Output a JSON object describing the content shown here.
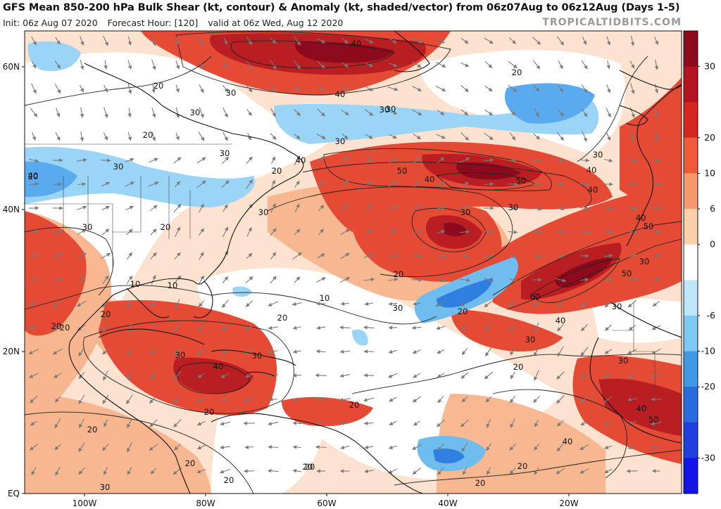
{
  "header": {
    "title": "GFS Mean 850-200 hPa Bulk Shear (kt, contour) & Anomaly (kt, shaded/vector) from 06z07Aug to 06z12Aug (Days 1-5)",
    "init": "Init: 06z Aug 07 2020",
    "forecast_hour": "Forecast Hour: [120]",
    "valid": "valid at 06z Wed, Aug 12 2020",
    "brand": "TROPICALTIDBITS.COM"
  },
  "map": {
    "lat_labels": [
      "60N",
      "40N",
      "20N",
      "EQ"
    ],
    "lon_labels": [
      "100W",
      "80W",
      "60W",
      "40W",
      "20W"
    ],
    "contour_labels": [
      "40",
      "40",
      "30",
      "20",
      "30",
      "20",
      "30",
      "30",
      "40",
      "20",
      "40",
      "30",
      "30",
      "20",
      "30",
      "50",
      "40",
      "50",
      "40",
      "30",
      "30",
      "40",
      "40",
      "30",
      "50",
      "30",
      "20",
      "30",
      "60",
      "50",
      "20",
      "10",
      "10",
      "10",
      "20",
      "20",
      "20",
      "40",
      "40",
      "30",
      "30",
      "20",
      "20",
      "30",
      "20",
      "20",
      "30",
      "40",
      "50",
      "40",
      "20",
      "20",
      "20",
      "20",
      "30",
      "20",
      "30",
      "20",
      "30",
      "30",
      "20",
      "20",
      "20"
    ],
    "region_notes": []
  },
  "colorbar": {
    "ticks": [
      "30",
      "20",
      "10",
      "6",
      "0",
      "-6",
      "-10",
      "-20",
      "-30"
    ],
    "colors": [
      "#8b0a1c",
      "#b3141e",
      "#d6271e",
      "#ee5a3a",
      "#f59a6a",
      "#fbd0a8",
      "#ffffff",
      "#bfe6fb",
      "#7ccaf3",
      "#3f9ae6",
      "#2b6be0",
      "#1f3fe0",
      "#1414e8"
    ]
  },
  "palette": {
    "pos_strong": "#b81e22",
    "pos_mid": "#e23d2c",
    "pos_light": "#f28a5e",
    "pos_pale": "#fbcfa8",
    "neg_pale": "#bfe6fb",
    "neg_mid": "#6fbcef",
    "neg_strong": "#2f7fe0",
    "land": "#ffffff",
    "vector": "#777777"
  }
}
